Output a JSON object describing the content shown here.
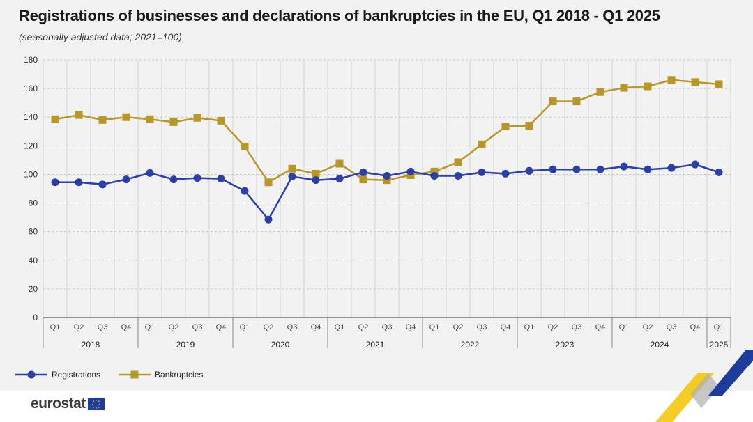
{
  "title": "Registrations of businesses and declarations of bankruptcies in the EU, Q1 2018 - Q1 2025",
  "subtitle": "(seasonally adjusted data; 2021=100)",
  "brand": {
    "name": "eurostat"
  },
  "colors": {
    "registrations": "#2c3fa6",
    "bankruptcies": "#b8972a",
    "grid": "#c8c8c8",
    "axis": "#333333",
    "brand_blue": "#1d3c9c",
    "brand_yellow": "#f5c400"
  },
  "chart_data": {
    "type": "line",
    "ylim": [
      0,
      180
    ],
    "yticks": [
      0,
      20,
      40,
      60,
      80,
      100,
      120,
      140,
      160,
      180
    ],
    "grid": true,
    "legend_position": "bottom-left",
    "quarters": [
      "Q1",
      "Q2",
      "Q3",
      "Q4",
      "Q1",
      "Q2",
      "Q3",
      "Q4",
      "Q1",
      "Q2",
      "Q3",
      "Q4",
      "Q1",
      "Q2",
      "Q3",
      "Q4",
      "Q1",
      "Q2",
      "Q3",
      "Q4",
      "Q1",
      "Q2",
      "Q3",
      "Q4",
      "Q1",
      "Q2",
      "Q3",
      "Q4",
      "Q1"
    ],
    "years": [
      {
        "label": "2018",
        "quarters": 4
      },
      {
        "label": "2019",
        "quarters": 4
      },
      {
        "label": "2020",
        "quarters": 4
      },
      {
        "label": "2021",
        "quarters": 4
      },
      {
        "label": "2022",
        "quarters": 4
      },
      {
        "label": "2023",
        "quarters": 4
      },
      {
        "label": "2024",
        "quarters": 4
      },
      {
        "label": "2025",
        "quarters": 1
      }
    ],
    "series": [
      {
        "name": "Registrations",
        "marker": "circle",
        "values": [
          94.5,
          94.5,
          93,
          96.5,
          101,
          96.5,
          97.5,
          97,
          88.5,
          68.5,
          98.5,
          96,
          97,
          101.5,
          99,
          102,
          99,
          99,
          101.5,
          100.5,
          102.5,
          103.5,
          103.5,
          103.5,
          105.5,
          103.5,
          104.5,
          107,
          101.5
        ]
      },
      {
        "name": "Bankruptcies",
        "marker": "square",
        "values": [
          138.5,
          141.5,
          138,
          140,
          138.5,
          136.5,
          139.5,
          137.5,
          119.5,
          94.5,
          104,
          100.5,
          107.5,
          96.5,
          96,
          99.5,
          102,
          108.5,
          121,
          133.5,
          134,
          151,
          151,
          157.5,
          160.5,
          161.5,
          166,
          164.5,
          163
        ]
      }
    ]
  }
}
